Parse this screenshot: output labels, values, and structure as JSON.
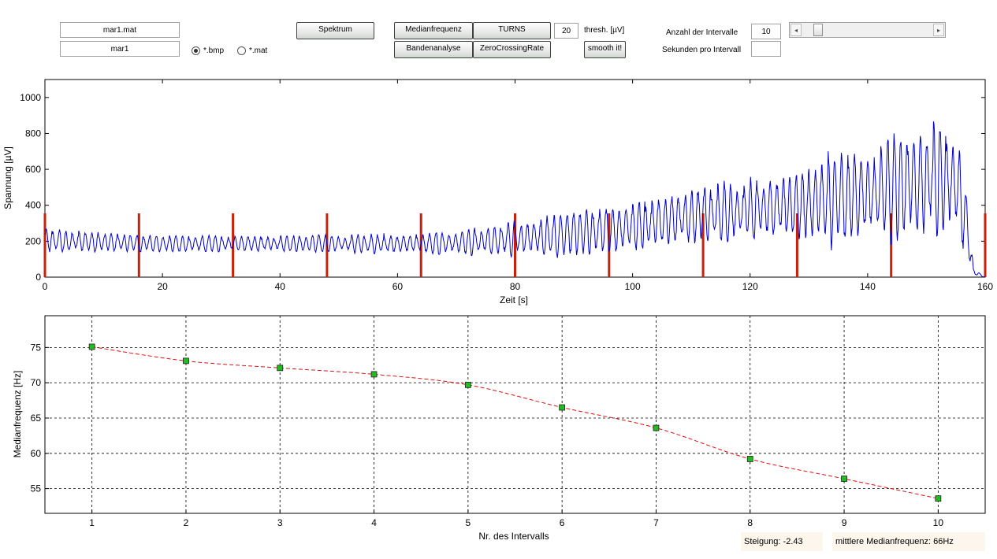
{
  "file": {
    "mat_name": "mar1.mat",
    "base_name": "mar1"
  },
  "format": {
    "options": [
      {
        "label": "*.bmp",
        "selected": true
      },
      {
        "label": "*.mat",
        "selected": false
      }
    ]
  },
  "buttons": {
    "spektrum": "Spektrum",
    "medianfrequenz": "Medianfrequenz",
    "turns": "TURNS",
    "bandenanalyse": "Bandenanalyse",
    "zerocrossing": "ZeroCrossingRate",
    "smooth": "smooth it!"
  },
  "thresh": {
    "value": "20",
    "label": "thresh. [µV]"
  },
  "intervals": {
    "count_label": "Anzahl der Intervalle",
    "count_value": "10",
    "seconds_label": "Sekunden pro Intervall",
    "seconds_value": ""
  },
  "slider": {
    "left_arrow": "◂",
    "right_arrow": "▸"
  },
  "colors": {
    "signal": "#0000c8",
    "markers": "#c8200a",
    "median_line": "#e01010",
    "median_marker": "#22bb22"
  },
  "chart_data": [
    {
      "type": "line",
      "title": "",
      "xlabel": "Zeit [s]",
      "ylabel": "Spannung [µV]",
      "xlim": [
        0,
        160
      ],
      "ylim": [
        0,
        1100
      ],
      "xticks": [
        0,
        20,
        40,
        60,
        80,
        100,
        120,
        140,
        160
      ],
      "yticks": [
        0,
        200,
        400,
        600,
        800,
        1000
      ],
      "grid": false,
      "series": [
        {
          "kind": "signal",
          "envelope": [
            {
              "t": 0,
              "low": 140,
              "high": 270
            },
            {
              "t": 20,
              "low": 140,
              "high": 230
            },
            {
              "t": 40,
              "low": 145,
              "high": 230
            },
            {
              "t": 60,
              "low": 130,
              "high": 240
            },
            {
              "t": 70,
              "low": 120,
              "high": 260
            },
            {
              "t": 80,
              "low": 110,
              "high": 320
            },
            {
              "t": 90,
              "low": 110,
              "high": 370
            },
            {
              "t": 100,
              "low": 120,
              "high": 440
            },
            {
              "t": 110,
              "low": 180,
              "high": 500
            },
            {
              "t": 120,
              "low": 190,
              "high": 560
            },
            {
              "t": 130,
              "low": 180,
              "high": 640
            },
            {
              "t": 140,
              "low": 200,
              "high": 720
            },
            {
              "t": 150,
              "low": 230,
              "high": 840
            },
            {
              "t": 155,
              "low": 220,
              "high": 870
            },
            {
              "t": 157,
              "low": 150,
              "high": 400
            },
            {
              "t": 158,
              "low": 0,
              "high": 60
            },
            {
              "t": 160,
              "low": 0,
              "high": 0
            }
          ],
          "cycles_per_second": 0.9
        },
        {
          "kind": "interval_markers",
          "x": [
            0,
            16,
            32,
            48,
            64,
            80,
            96,
            112,
            128,
            144,
            160
          ],
          "height": 355
        }
      ]
    },
    {
      "type": "line",
      "title": "",
      "xlabel": "Nr. des Intervalls",
      "ylabel": "Medianfrequenz [Hz]",
      "xlim": [
        0.5,
        10.5
      ],
      "ylim": [
        51.5,
        79.5
      ],
      "xticks": [
        1,
        2,
        3,
        4,
        5,
        6,
        7,
        8,
        9,
        10
      ],
      "yticks": [
        55,
        60,
        65,
        70,
        75
      ],
      "grid": true,
      "series": [
        {
          "kind": "median",
          "x": [
            1,
            2,
            3,
            4,
            5,
            6,
            7,
            8,
            9,
            10
          ],
          "values": [
            75.1,
            73.1,
            72.1,
            71.2,
            69.7,
            66.5,
            63.6,
            59.2,
            56.4,
            53.6
          ]
        }
      ]
    }
  ],
  "summary": {
    "slope_label": "Steigung:",
    "slope_value": "-2.43",
    "mean_label": "mittlere Medianfrequenz:",
    "mean_value": "66Hz"
  }
}
